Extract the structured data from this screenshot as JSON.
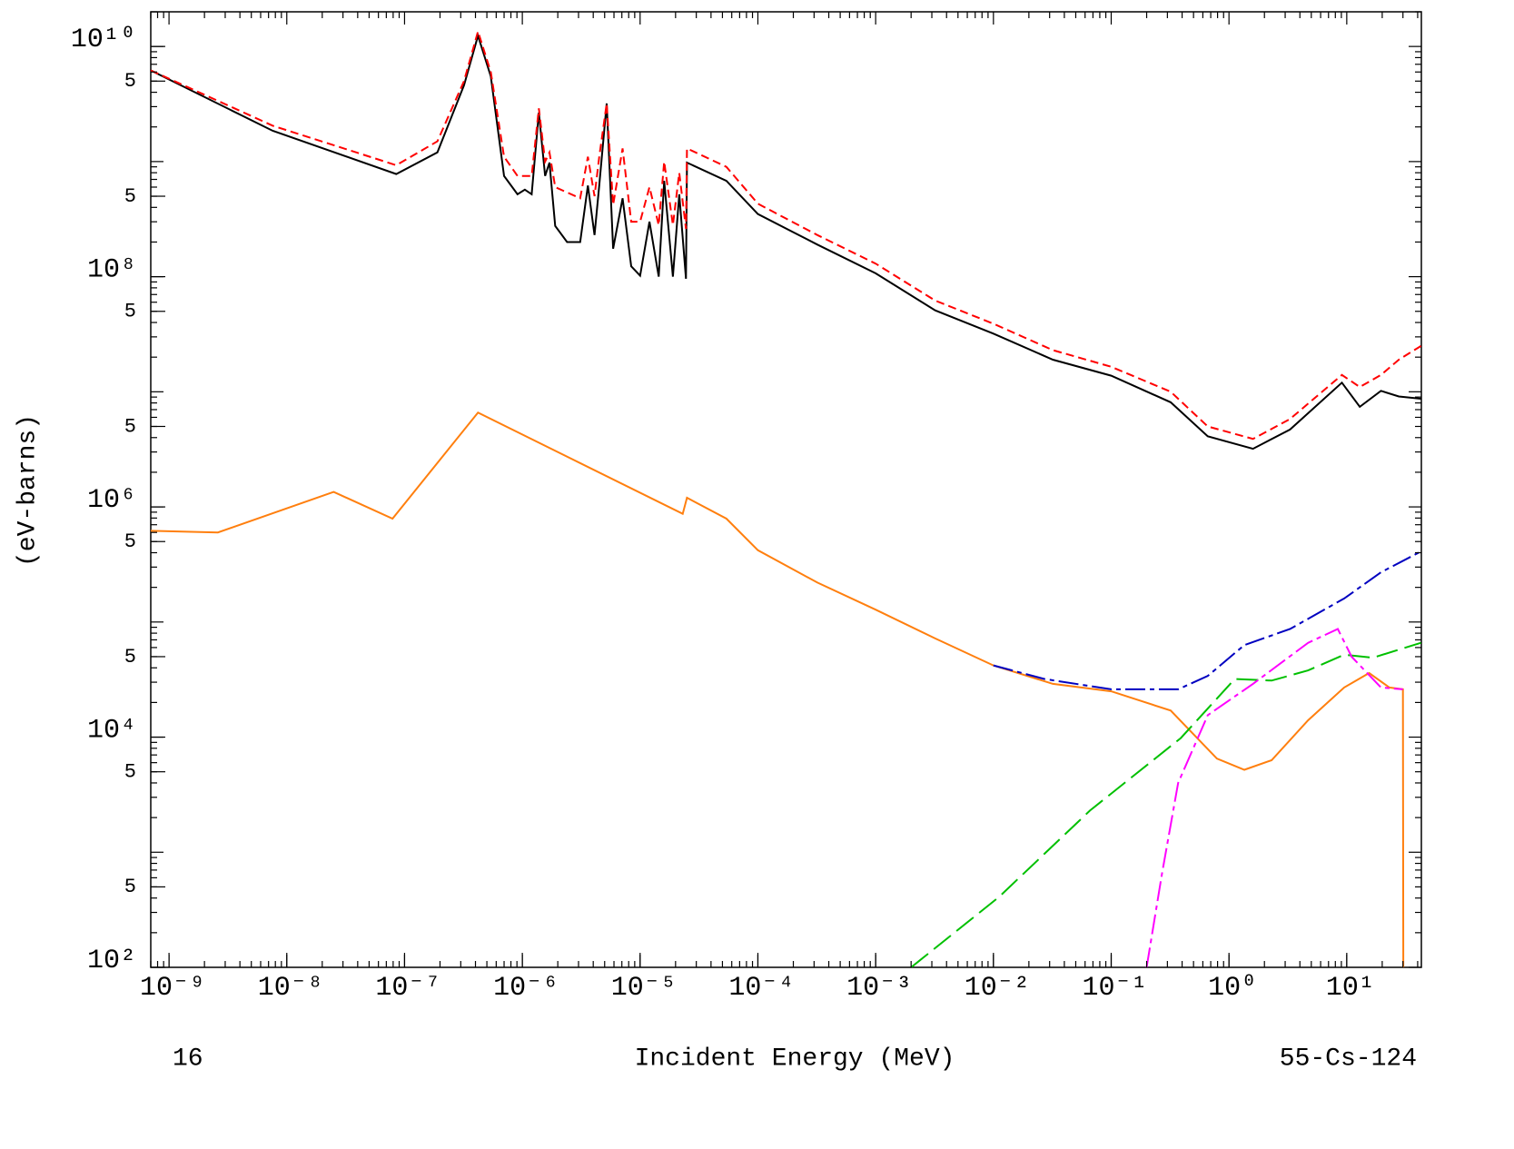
{
  "chart_data": {
    "type": "line",
    "x_label": "Incident Energy (MeV)",
    "y_label": "(eV-barns)",
    "footer_left": "16",
    "footer_right": "55-Cs-124",
    "xscale": "log",
    "yscale": "log",
    "xlim": [
      7e-10,
      43
    ],
    "ylim": [
      100,
      20000000000.0
    ],
    "xticks": [
      {
        "value": 1e-09,
        "label": "10⁻⁹"
      },
      {
        "value": 1e-08,
        "label": "10⁻⁸"
      },
      {
        "value": 1e-07,
        "label": "10⁻⁷"
      },
      {
        "value": 1e-06,
        "label": "10⁻⁶"
      },
      {
        "value": 1e-05,
        "label": "10⁻⁵"
      },
      {
        "value": 0.0001,
        "label": "10⁻⁴"
      },
      {
        "value": 0.001,
        "label": "10⁻³"
      },
      {
        "value": 0.01,
        "label": "10⁻²"
      },
      {
        "value": 0.1,
        "label": "10⁻¹"
      },
      {
        "value": 1,
        "label": "10⁰"
      },
      {
        "value": 10,
        "label": "10¹"
      }
    ],
    "yticks": [
      {
        "value": 10000000000.0,
        "label": "10¹⁰"
      },
      {
        "value": 5000000000.0,
        "label": "5"
      },
      {
        "value": 500000000.0,
        "label": "5"
      },
      {
        "value": 100000000.0,
        "label": "10⁸"
      },
      {
        "value": 50000000.0,
        "label": "5"
      },
      {
        "value": 5000000.0,
        "label": "5"
      },
      {
        "value": 1000000.0,
        "label": "10⁶"
      },
      {
        "value": 500000.0,
        "label": "5"
      },
      {
        "value": 50000.0,
        "label": "5"
      },
      {
        "value": 10000.0,
        "label": "10⁴"
      },
      {
        "value": 5000.0,
        "label": "5"
      },
      {
        "value": 500.0,
        "label": "5"
      },
      {
        "value": 100,
        "label": "10²"
      }
    ],
    "series": [
      {
        "color": "#000000",
        "dash": "solid",
        "x": [
          7e-10,
          7.6e-09,
          8.5e-08,
          1.9e-07,
          3.2e-07,
          4.2e-07,
          5.4e-07,
          7e-07,
          9.1e-07,
          1.05e-06,
          1.2e-06,
          1.38e-06,
          1.56e-06,
          1.7e-06,
          1.9e-06,
          2.4e-06,
          3.1e-06,
          3.6e-06,
          4.1e-06,
          4.5e-06,
          5.2e-06,
          5.9e-06,
          7.1e-06,
          8.4e-06,
          1e-05,
          1.2e-05,
          1.44e-05,
          1.6e-05,
          1.9e-05,
          2.15e-05,
          2.45e-05,
          2.5e-05,
          5.4e-05,
          0.0001,
          0.00032,
          0.001,
          0.0032,
          0.01,
          0.032,
          0.1,
          0.32,
          0.66,
          1.6,
          3.3,
          9.1,
          12.9,
          19.5,
          27.7,
          42.7
        ],
        "values": [
          6200000000.0,
          1850000000.0,
          780000000.0,
          1200000000.0,
          4600000000.0,
          12400000000.0,
          5500000000.0,
          750000000.0,
          520000000.0,
          570000000.0,
          520000000.0,
          2660000000.0,
          750000000.0,
          980000000.0,
          276000000.0,
          200000000.0,
          200000000.0,
          620000000.0,
          230000000.0,
          620000000.0,
          3200000000.0,
          175000000.0,
          480000000.0,
          123000000.0,
          102000000.0,
          300000000.0,
          100000000.0,
          680000000.0,
          100000000.0,
          520000000.0,
          96000000.0,
          980000000.0,
          680000000.0,
          350000000.0,
          190000000.0,
          107000000.0,
          51000000.0,
          32000000.0,
          19000000.0,
          13800000.0,
          8100000.0,
          4100000.0,
          3200000.0,
          4700000.0,
          12000000.0,
          7400000.0,
          10200000.0,
          9100000.0,
          8700000.0
        ]
      },
      {
        "color": "#ff0000",
        "dash": "dashed",
        "x": [
          7e-10,
          7.6e-09,
          8.5e-08,
          1.9e-07,
          3.2e-07,
          4.2e-07,
          5.4e-07,
          7e-07,
          9.1e-07,
          1.2e-06,
          1.38e-06,
          1.56e-06,
          1.7e-06,
          1.9e-06,
          3.1e-06,
          3.6e-06,
          4.1e-06,
          4.5e-06,
          5.2e-06,
          5.9e-06,
          7.1e-06,
          8.4e-06,
          1e-05,
          1.2e-05,
          1.44e-05,
          1.6e-05,
          1.9e-05,
          2.15e-05,
          2.45e-05,
          2.5e-05,
          5.4e-05,
          0.0001,
          0.00032,
          0.001,
          0.0032,
          0.01,
          0.032,
          0.1,
          0.32,
          0.66,
          1.6,
          3.3,
          9.1,
          12.9,
          19.5,
          27.7,
          42.7
        ],
        "values": [
          6200000000.0,
          2050000000.0,
          930000000.0,
          1500000000.0,
          5000000000.0,
          13500000000.0,
          6000000000.0,
          1100000000.0,
          750000000.0,
          750000000.0,
          2900000000.0,
          1000000000.0,
          1200000000.0,
          600000000.0,
          480000000.0,
          1100000000.0,
          500000000.0,
          1100000000.0,
          3200000000.0,
          420000000.0,
          1300000000.0,
          300000000.0,
          300000000.0,
          600000000.0,
          280000000.0,
          1000000000.0,
          280000000.0,
          800000000.0,
          260000000.0,
          1300000000.0,
          900000000.0,
          430000000.0,
          230000000.0,
          130000000.0,
          62000000.0,
          39000000.0,
          23000000.0,
          16500000.0,
          10000000.0,
          5000000.0,
          3900000.0,
          5800000.0,
          14000000.0,
          11000000.0,
          14000000.0,
          19000000.0,
          25000000.0
        ]
      },
      {
        "color": "#ff7f0e",
        "dash": "solid",
        "x": [
          7e-10,
          2.6e-09,
          2.5e-08,
          7.9e-08,
          4.2e-07,
          2.3e-05,
          2.5e-05,
          5.4e-05,
          0.0001,
          0.00032,
          0.001,
          0.0032,
          0.01,
          0.032,
          0.1,
          0.32,
          0.79,
          1.35,
          2.3,
          4.7,
          9.5,
          15.5,
          23,
          30,
          30.3
        ],
        "values": [
          620000.0,
          600000.0,
          1350000.0,
          790000.0,
          6600000.0,
          870000.0,
          1200000.0,
          790000.0,
          420000.0,
          220000.0,
          128000.0,
          72000.0,
          42000.0,
          29000.0,
          25000.0,
          17000.0,
          6500.0,
          5200.0,
          6300.0,
          14000.0,
          27000.0,
          36000.0,
          27000.0,
          26000.0,
          10
        ]
      },
      {
        "color": "#0000c0",
        "dash": "dashdot",
        "x": [
          0.01,
          0.027,
          0.1,
          0.37,
          0.66,
          1.35,
          3.3,
          9.5,
          19.5,
          42.7
        ],
        "values": [
          42000.0,
          32000.0,
          26000.0,
          26000.0,
          34000.0,
          63000.0,
          87000.0,
          160000.0,
          270000.0,
          410000.0
        ]
      },
      {
        "color": "#00c000",
        "dash": "longdash",
        "x": [
          0.002,
          0.0112,
          0.066,
          0.39,
          1.12,
          2.3,
          4.7,
          9.5,
          16.7,
          42.7
        ],
        "values": [
          100,
          410,
          2300,
          9800,
          32000.0,
          31000.0,
          38000.0,
          52000.0,
          49000.0,
          66000.0
        ]
      },
      {
        "color": "#ff00ff",
        "dash": "dashdot",
        "x": [
          0.2,
          0.27,
          0.37,
          0.66,
          1.6,
          4.7,
          8.4,
          11,
          19.5,
          30
        ],
        "values": [
          100,
          650,
          4000,
          15500.0,
          29000.0,
          66000.0,
          87000.0,
          50000.0,
          27000.0,
          26000.0
        ]
      }
    ]
  }
}
